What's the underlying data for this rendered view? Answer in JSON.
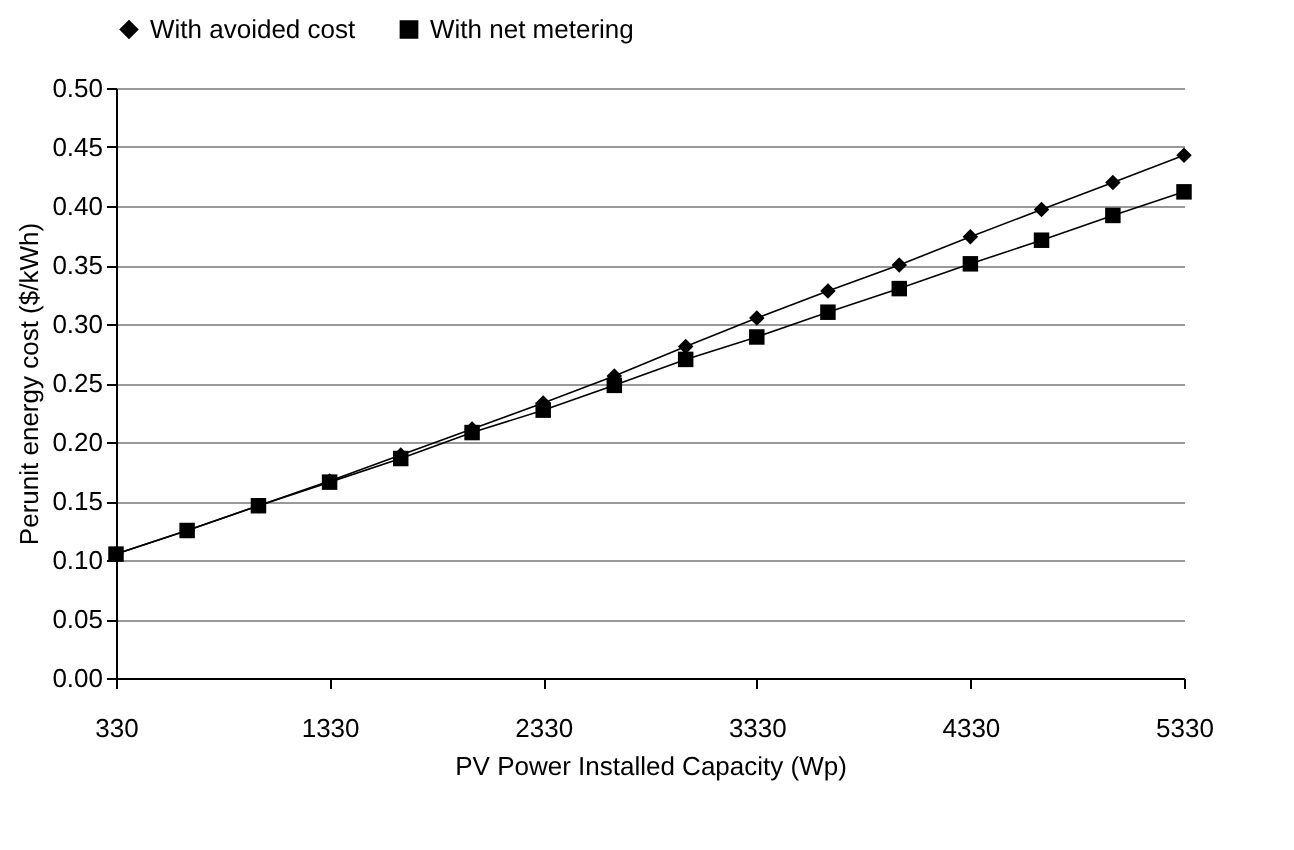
{
  "chart_data": {
    "type": "line",
    "xlabel": "PV Power Installed  Capacity (Wp)",
    "ylabel": "Perunit energy cost ($/kWh)",
    "x": [
      330,
      663,
      997,
      1330,
      1663,
      1997,
      2330,
      2663,
      2997,
      3330,
      3663,
      3997,
      4330,
      4663,
      4997,
      5330
    ],
    "series": [
      {
        "name": "With avoided cost",
        "color": "#000000",
        "marker": "diamond",
        "values": [
          0.105,
          0.125,
          0.146,
          0.167,
          0.189,
          0.211,
          0.233,
          0.256,
          0.281,
          0.305,
          0.328,
          0.35,
          0.374,
          0.397,
          0.42,
          0.443
        ]
      },
      {
        "name": "With net metering",
        "color": "#000000",
        "marker": "square",
        "values": [
          0.105,
          0.125,
          0.146,
          0.166,
          0.186,
          0.208,
          0.227,
          0.248,
          0.27,
          0.289,
          0.31,
          0.33,
          0.351,
          0.371,
          0.392,
          0.412
        ]
      }
    ],
    "xlim": [
      330,
      5330
    ],
    "xticks": [
      330,
      1330,
      2330,
      3330,
      4330,
      5330
    ],
    "ylim": [
      0,
      0.5
    ],
    "yticks": [
      {
        "value": 0,
        "label": "0.00"
      },
      0.05,
      {
        "value": 0.1,
        "label": "0.10"
      },
      0.15,
      {
        "value": 0.2,
        "label": "0.20"
      },
      0.25,
      {
        "value": 0.3,
        "label": "0.30"
      },
      0.35,
      {
        "value": 0.4,
        "label": "0.40"
      },
      0.45,
      {
        "value": 0.5,
        "label": "0.50"
      }
    ],
    "grid": "y",
    "legend": "top",
    "line_style": "solid"
  }
}
